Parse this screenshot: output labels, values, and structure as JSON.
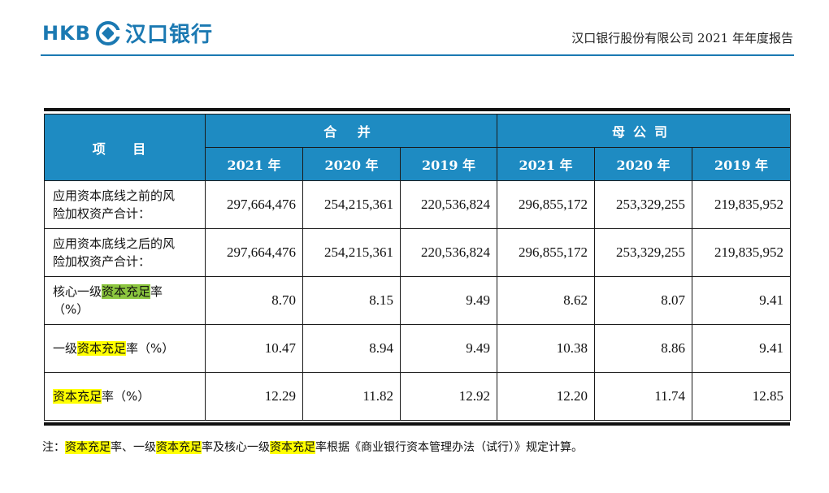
{
  "header": {
    "logo_latin": "HKB",
    "logo_chinese": "汉口银行",
    "report_title": "汉口银行股份有限公司 2021 年年度报告"
  },
  "table": {
    "item_header": "项 目",
    "group_consolidated": "合 并",
    "group_parent": "母公司",
    "years": [
      "2021 年",
      "2020 年",
      "2019 年",
      "2021 年",
      "2020 年",
      "2019 年"
    ],
    "rows": [
      {
        "label_line1": "应用资本底线之前的风",
        "label_line2": "险加权资产合计：",
        "values": [
          "297,664,476",
          "254,215,361",
          "220,536,824",
          "296,855,172",
          "253,329,255",
          "219,835,952"
        ]
      },
      {
        "label_line1": "应用资本底线之后的风",
        "label_line2": "险加权资产合计：",
        "values": [
          "297,664,476",
          "254,215,361",
          "220,536,824",
          "296,855,172",
          "253,329,255",
          "219,835,952"
        ]
      },
      {
        "label_pre": "核心一级",
        "label_hl": "资本充足",
        "label_post": "率",
        "label_line2": "（%）",
        "values": [
          "8.70",
          "8.15",
          "9.49",
          "8.62",
          "8.07",
          "9.41"
        ]
      },
      {
        "label_pre": "一级",
        "label_hl": "资本充足",
        "label_post": "率（%）",
        "values": [
          "10.47",
          "8.94",
          "9.49",
          "10.38",
          "8.86",
          "9.41"
        ]
      },
      {
        "label_hl": "资本充足",
        "label_post": "率（%）",
        "values": [
          "12.29",
          "11.82",
          "12.92",
          "12.20",
          "11.74",
          "12.85"
        ]
      }
    ]
  },
  "note": {
    "prefix": "注：",
    "hl1": "资本充足",
    "mid1": "率、一级",
    "hl2": "资本充足",
    "mid2": "率及核心一级",
    "hl3": "资本充足",
    "suffix": "率根据《商业银行资本管理办法（试行）》规定计算。"
  },
  "colors": {
    "brand_blue": "#1b79b2",
    "header_fill": "#1e8bc2",
    "highlight_yellow": "#ffff00",
    "highlight_green": "#8cc63f"
  }
}
